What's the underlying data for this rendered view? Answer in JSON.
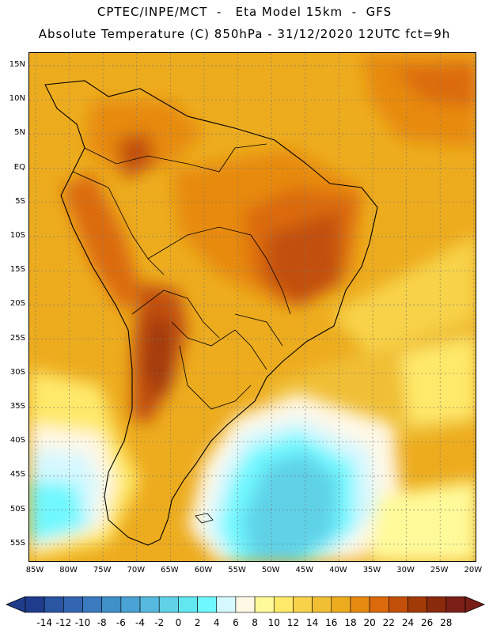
{
  "header": {
    "line1": "CPTEC/INPE/MCT  -   Eta Model 15km  -  GFS",
    "line2": "Absolute Temperature (C) 850hPa - 31/12/2020 12UTC fct=9h"
  },
  "map": {
    "region": "South America",
    "variable": "Absolute Temperature (C)",
    "level": "850hPa",
    "lat_labels": [
      "15N",
      "10N",
      "5N",
      "EQ",
      "5S",
      "10S",
      "15S",
      "20S",
      "25S",
      "30S",
      "35S",
      "40S",
      "45S",
      "50S",
      "55S"
    ],
    "lon_labels": [
      "85W",
      "80W",
      "75W",
      "70W",
      "65W",
      "60W",
      "55W",
      "50W",
      "45W",
      "40W",
      "35W",
      "30W",
      "25W",
      "20W"
    ]
  },
  "colorbar": {
    "labels": [
      "-14",
      "-12",
      "-10",
      "-8",
      "-6",
      "-4",
      "-2",
      "0",
      "2",
      "4",
      "6",
      "8",
      "10",
      "12",
      "14",
      "16",
      "18",
      "20",
      "22",
      "24",
      "26",
      "28"
    ],
    "colors": [
      "#1f3c8c",
      "#2a55a0",
      "#3366b0",
      "#3a7bbf",
      "#3f8fc8",
      "#4aa3d4",
      "#56b9df",
      "#5fd2e8",
      "#62e7f0",
      "#6ff8ff",
      "#d6f8ff",
      "#fff8e6",
      "#fffa99",
      "#ffe96a",
      "#f8d34a",
      "#f0bf34",
      "#edac1e",
      "#e78a10",
      "#db6a0c",
      "#c2500a",
      "#a23a08",
      "#8a2a0c",
      "#7a1e18"
    ]
  }
}
